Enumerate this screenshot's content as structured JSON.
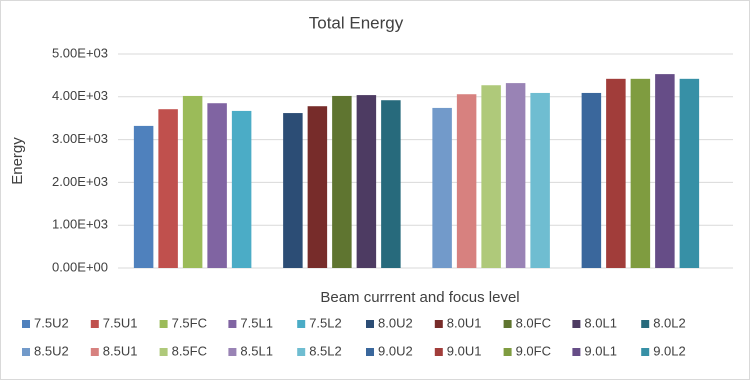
{
  "chart_data": {
    "type": "bar",
    "title": "Total Energy",
    "y_label": "Energy",
    "x_label": "Beam currrent and focus level",
    "categories": [
      null,
      null,
      null,
      null
    ],
    "series": [
      {
        "name": "7.5U2",
        "color": "#4f81bd",
        "values": [
          3320,
          null,
          null,
          null
        ]
      },
      {
        "name": "7.5U1",
        "color": "#c0504d",
        "values": [
          3710,
          null,
          null,
          null
        ]
      },
      {
        "name": "7.5FC",
        "color": "#9bbb59",
        "values": [
          4020,
          null,
          null,
          null
        ]
      },
      {
        "name": "7.5L1",
        "color": "#8064a2",
        "values": [
          3850,
          null,
          null,
          null
        ]
      },
      {
        "name": "7.5L2",
        "color": "#4bacc6",
        "values": [
          3670,
          null,
          null,
          null
        ]
      },
      {
        "name": "8.0U2",
        "color": "#2c4d75",
        "values": [
          null,
          3620,
          null,
          null
        ]
      },
      {
        "name": "8.0U1",
        "color": "#772c2a",
        "values": [
          null,
          3780,
          null,
          null
        ]
      },
      {
        "name": "8.0FC",
        "color": "#5f7530",
        "values": [
          null,
          4020,
          null,
          null
        ]
      },
      {
        "name": "8.0L1",
        "color": "#4d3b62",
        "values": [
          null,
          4040,
          null,
          null
        ]
      },
      {
        "name": "8.0L2",
        "color": "#276a7c",
        "values": [
          null,
          3920,
          null,
          null
        ]
      },
      {
        "name": "8.5U2",
        "color": "#729aca",
        "values": [
          null,
          null,
          3740,
          null
        ]
      },
      {
        "name": "8.5U1",
        "color": "#d7817f",
        "values": [
          null,
          null,
          4060,
          null
        ]
      },
      {
        "name": "8.5FC",
        "color": "#afc97a",
        "values": [
          null,
          null,
          4270,
          null
        ]
      },
      {
        "name": "8.5L1",
        "color": "#9983b5",
        "values": [
          null,
          null,
          4320,
          null
        ]
      },
      {
        "name": "8.5L2",
        "color": "#6fbdd1",
        "values": [
          null,
          null,
          4090,
          null
        ]
      },
      {
        "name": "9.0U2",
        "color": "#3a679c",
        "values": [
          null,
          null,
          null,
          4090
        ]
      },
      {
        "name": "9.0U1",
        "color": "#a13d3a",
        "values": [
          null,
          null,
          null,
          4420
        ]
      },
      {
        "name": "9.0FC",
        "color": "#7f9c40",
        "values": [
          null,
          null,
          null,
          4420
        ]
      },
      {
        "name": "9.0L1",
        "color": "#664d87",
        "values": [
          null,
          null,
          null,
          4530
        ]
      },
      {
        "name": "9.0L2",
        "color": "#3790a6",
        "values": [
          null,
          null,
          null,
          4420
        ]
      }
    ],
    "ylim": [
      0,
      5000
    ],
    "yticks": [
      {
        "value": 0,
        "label": "0.00E+00"
      },
      {
        "value": 1000,
        "label": "1.00E+03"
      },
      {
        "value": 2000,
        "label": "2.00E+03"
      },
      {
        "value": 3000,
        "label": "3.00E+03"
      },
      {
        "value": 4000,
        "label": "4.00E+03"
      },
      {
        "value": 5000,
        "label": "5.00E+03"
      }
    ],
    "grid": true,
    "legend": "bottom"
  }
}
